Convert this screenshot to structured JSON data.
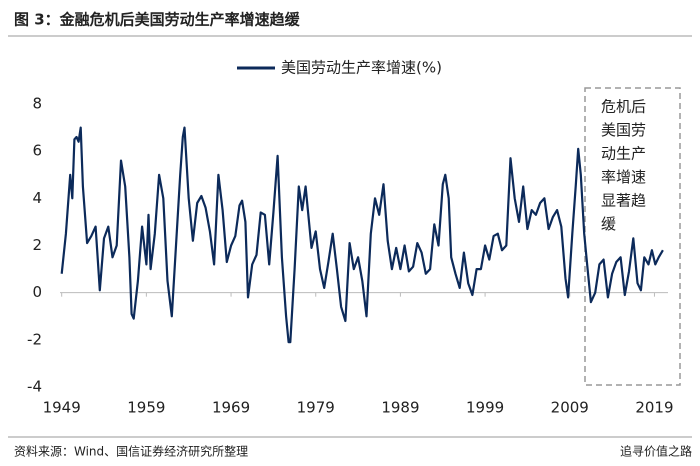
{
  "chart_data": {
    "type": "line",
    "title": "图 3：金融危机后美国劳动生产率增速趋缓",
    "source": "资料来源：Wind、国信证券经济研究所整理",
    "watermark": "追寻价值之路",
    "annotation": [
      "危机后",
      "美国劳",
      "动生产",
      "率增速",
      "显著趋",
      "缓"
    ],
    "legend": "top",
    "grid": false,
    "xlim": [
      1948.8,
      2020.6
    ],
    "ylim": [
      -4,
      8
    ],
    "xticks": [
      1949,
      1959,
      1969,
      1979,
      1989,
      1999,
      2009,
      2019
    ],
    "yticks": [
      -4,
      -2,
      0,
      2,
      4,
      6,
      8
    ],
    "x": [
      1949.0,
      1949.5,
      1950.0,
      1950.25,
      1950.5,
      1950.75,
      1951.0,
      1951.25,
      1951.5,
      1952.0,
      1952.5,
      1953.0,
      1953.5,
      1954.0,
      1954.5,
      1955.0,
      1955.5,
      1956.0,
      1956.5,
      1957.0,
      1957.25,
      1957.5,
      1958.0,
      1958.5,
      1959.0,
      1959.25,
      1959.5,
      1960.0,
      1960.5,
      1961.0,
      1961.5,
      1962.0,
      1962.5,
      1963.0,
      1963.3,
      1963.5,
      1964.0,
      1964.5,
      1965.0,
      1965.5,
      1966.0,
      1966.5,
      1967.0,
      1967.5,
      1968.0,
      1968.5,
      1969.0,
      1969.5,
      1970.0,
      1970.3,
      1970.7,
      1971.0,
      1971.5,
      1972.0,
      1972.5,
      1973.0,
      1973.5,
      1974.0,
      1974.5,
      1975.0,
      1975.5,
      1975.8,
      1976.0,
      1976.5,
      1977.0,
      1977.4,
      1977.8,
      1978.5,
      1979.0,
      1979.5,
      1980.0,
      1980.5,
      1981.0,
      1981.5,
      1982.0,
      1982.5,
      1983.0,
      1983.5,
      1984.0,
      1984.5,
      1985.0,
      1985.5,
      1986.0,
      1986.5,
      1987.0,
      1987.5,
      1988.0,
      1988.5,
      1989.0,
      1989.5,
      1990.0,
      1990.5,
      1991.0,
      1991.5,
      1992.0,
      1992.5,
      1993.0,
      1993.5,
      1994.0,
      1994.3,
      1994.7,
      1995.0,
      1995.5,
      1996.0,
      1996.5,
      1997.0,
      1997.5,
      1998.0,
      1998.5,
      1999.0,
      1999.5,
      2000.0,
      2000.5,
      2001.0,
      2001.5,
      2002.0,
      2002.5,
      2003.0,
      2003.5,
      2004.0,
      2004.5,
      2005.0,
      2005.5,
      2006.0,
      2006.5,
      2007.0,
      2007.5,
      2008.0,
      2008.5,
      2008.8,
      2009.3,
      2009.7,
      2010.0,
      2010.3,
      2010.7,
      2011.1,
      2011.5,
      2012.0,
      2012.5,
      2013.0,
      2013.5,
      2014.0,
      2014.5,
      2015.0,
      2015.5,
      2016.0,
      2016.5,
      2017.0,
      2017.4,
      2017.8,
      2018.3,
      2018.7,
      2019.1,
      2019.5,
      2020.0
    ],
    "series": [
      {
        "name": "美国劳动生产率增速(%)",
        "color": "#0c2a5a",
        "values": [
          0.8,
          2.5,
          5.0,
          4.0,
          6.5,
          6.6,
          6.4,
          7.0,
          4.5,
          2.1,
          2.4,
          2.8,
          0.1,
          2.3,
          2.8,
          1.5,
          2.0,
          5.6,
          4.5,
          1.5,
          -0.9,
          -1.1,
          0.5,
          2.8,
          1.2,
          3.3,
          1.0,
          2.5,
          5.0,
          4.0,
          0.5,
          -1.0,
          2.0,
          5.0,
          6.6,
          7.0,
          4.0,
          2.2,
          3.8,
          4.1,
          3.6,
          2.6,
          1.2,
          5.0,
          3.5,
          1.3,
          2.0,
          2.4,
          3.7,
          3.9,
          3.0,
          -0.2,
          1.2,
          1.6,
          3.4,
          3.3,
          1.2,
          3.4,
          5.8,
          1.5,
          -1.0,
          -2.1,
          -2.1,
          1.0,
          4.5,
          3.5,
          4.5,
          1.9,
          2.6,
          1.0,
          0.2,
          1.3,
          2.5,
          1.0,
          -0.6,
          -1.2,
          2.1,
          1.0,
          1.5,
          0.5,
          -1.0,
          2.5,
          4.0,
          3.3,
          4.6,
          2.2,
          1.0,
          1.9,
          1.0,
          2.0,
          0.9,
          1.1,
          2.1,
          1.7,
          0.8,
          1.0,
          2.9,
          2.0,
          4.6,
          5.0,
          4.0,
          1.5,
          0.8,
          0.2,
          1.7,
          0.4,
          -0.1,
          1.0,
          1.0,
          2.0,
          1.4,
          2.4,
          2.5,
          1.8,
          2.0,
          5.7,
          4.0,
          3.0,
          4.5,
          2.7,
          3.5,
          3.3,
          3.8,
          4.0,
          2.7,
          3.2,
          3.5,
          2.8,
          0.6,
          -0.2,
          2.5,
          4.5,
          6.1,
          5.0,
          2.5,
          1.0,
          -0.4,
          0.0,
          1.2,
          1.4,
          -0.2,
          0.8,
          1.3,
          1.5,
          -0.1,
          0.9,
          2.3,
          0.4,
          0.1,
          1.5,
          1.2,
          1.8,
          1.2,
          1.5,
          1.8
        ]
      }
    ]
  }
}
